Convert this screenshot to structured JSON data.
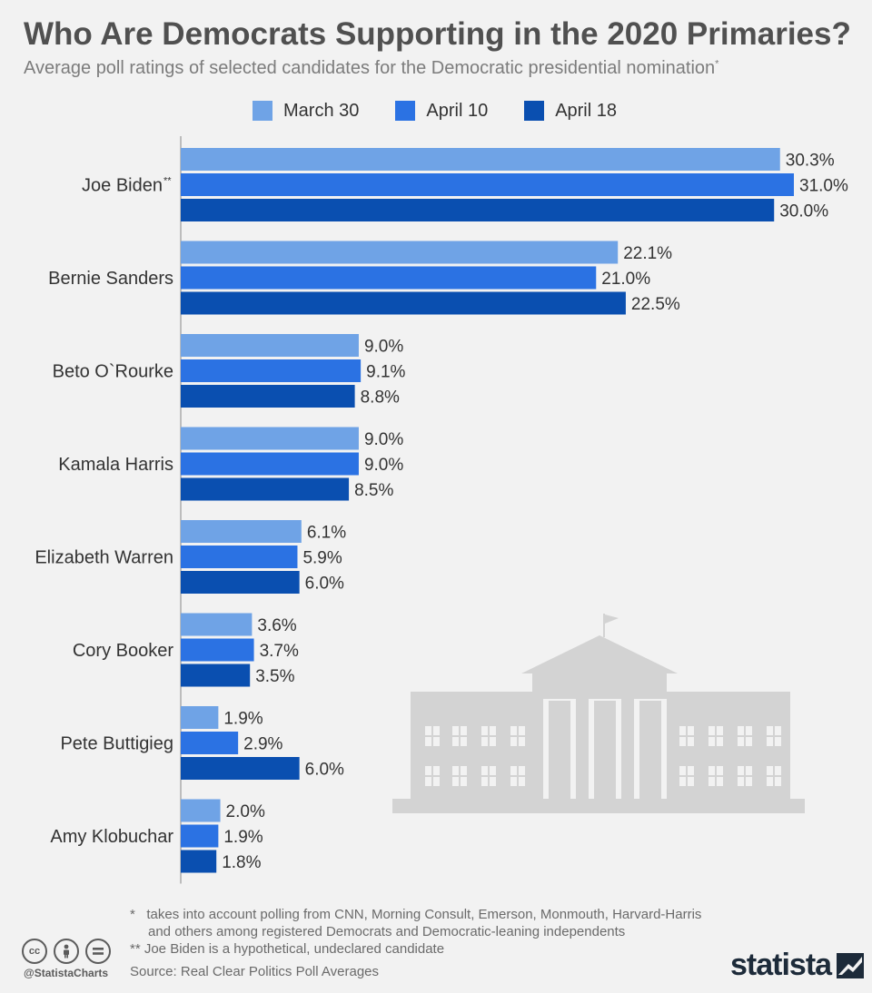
{
  "header": {
    "title": "Who Are Democrats Supporting in the 2020 Primaries?",
    "subtitle": "Average poll ratings of selected candidates for the Democratic presidential nomination",
    "subtitle_mark": "*"
  },
  "legend": [
    {
      "label": "March 30",
      "color": "#6fa3e6"
    },
    {
      "label": "April 10",
      "color": "#2b72e3"
    },
    {
      "label": "April 18",
      "color": "#0a4fb0"
    }
  ],
  "chart_data": {
    "type": "bar",
    "orientation": "horizontal",
    "categories": [
      "Joe Biden",
      "Bernie Sanders",
      "Beto O`Rourke",
      "Kamala Harris",
      "Elizabeth Warren",
      "Cory Booker",
      "Pete Buttigieg",
      "Amy Klobuchar"
    ],
    "category_marks": [
      "**",
      "",
      "",
      "",
      "",
      "",
      "",
      ""
    ],
    "series": [
      {
        "name": "March 30",
        "color": "#6fa3e6",
        "values": [
          30.3,
          22.1,
          9.0,
          9.0,
          6.1,
          3.6,
          1.9,
          2.0
        ]
      },
      {
        "name": "April 10",
        "color": "#2b72e3",
        "values": [
          31.0,
          21.0,
          9.1,
          9.0,
          5.9,
          3.7,
          2.9,
          1.9
        ]
      },
      {
        "name": "April 18",
        "color": "#0a4fb0",
        "values": [
          30.0,
          22.5,
          8.8,
          8.5,
          6.0,
          3.5,
          6.0,
          1.8
        ]
      }
    ],
    "value_suffix": "%",
    "xlim": [
      0,
      31
    ],
    "grid": false,
    "legend_position": "top-center"
  },
  "footnotes": {
    "note1_mark": "*",
    "note1_line1": "takes into account polling from CNN, Morning Consult, Emerson, Monmouth, Harvard-Harris",
    "note1_line2": "and others among registered Democrats and Democratic-leaning independents",
    "note2": "** Joe Biden is a hypothetical, undeclared candidate",
    "source": "Source: Real Clear Politics Poll Averages"
  },
  "branding": {
    "handle": "@StatistaCharts",
    "logo_text": "statista",
    "cc_icons": [
      "cc",
      "by",
      "nd"
    ]
  },
  "illustration": {
    "icon": "white-house-icon",
    "color": "#d3d3d3"
  }
}
